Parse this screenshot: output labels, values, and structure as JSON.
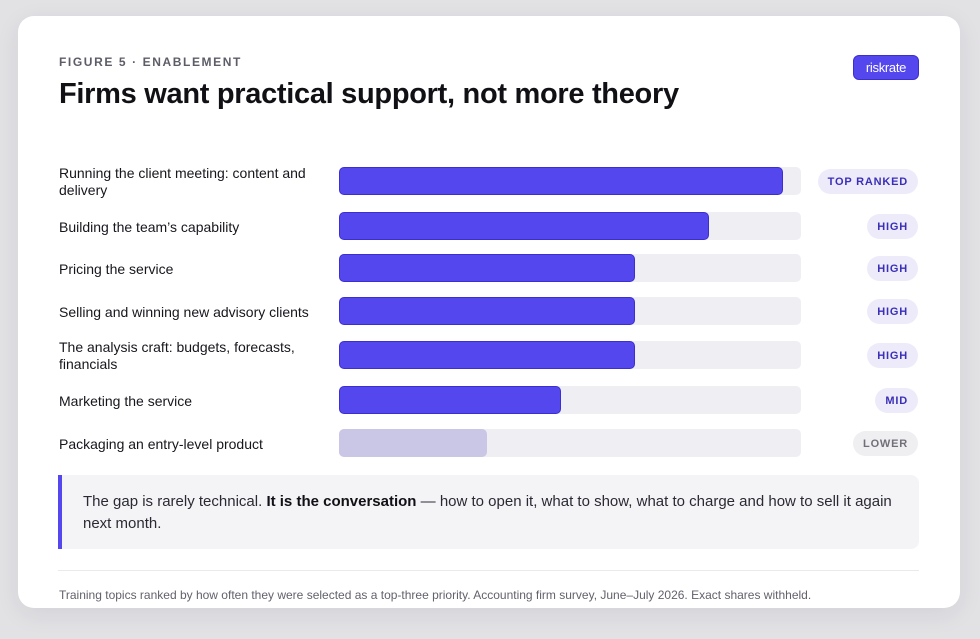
{
  "header": {
    "eyebrow": "FIGURE 5 · ENABLEMENT",
    "title": "Firms want practical support, not more theory",
    "brand": "riskrate"
  },
  "chart_data": {
    "type": "bar",
    "orientation": "horizontal",
    "scale": "relative share (exact values withheld)",
    "xlim": [
      0,
      1
    ],
    "categories": [
      "Running the client meeting: content and delivery",
      "Building the team’s capability",
      "Pricing the service",
      "Selling and winning new advisory clients",
      "The analysis craft: budgets, forecasts, financials",
      "Marketing the service",
      "Packaging an entry-level product"
    ],
    "values": [
      0.96,
      0.8,
      0.64,
      0.64,
      0.64,
      0.48,
      0.32
    ],
    "tiers": [
      "TOP RANKED",
      "HIGH",
      "HIGH",
      "HIGH",
      "HIGH",
      "MID",
      "LOWER"
    ],
    "colors": {
      "bar": "#5447ee",
      "bar_low": "#c9c6e6",
      "track": "#efeff3"
    }
  },
  "callout": {
    "lead": "The gap is rarely technical.",
    "emphasis": "It is the conversation",
    "rest": "— how to open it, what to show, what to charge and how to sell it again next month."
  },
  "footnote": "Training topics ranked by how often they were selected as a top-three priority. Accounting firm survey, June–July 2026. Exact shares withheld."
}
